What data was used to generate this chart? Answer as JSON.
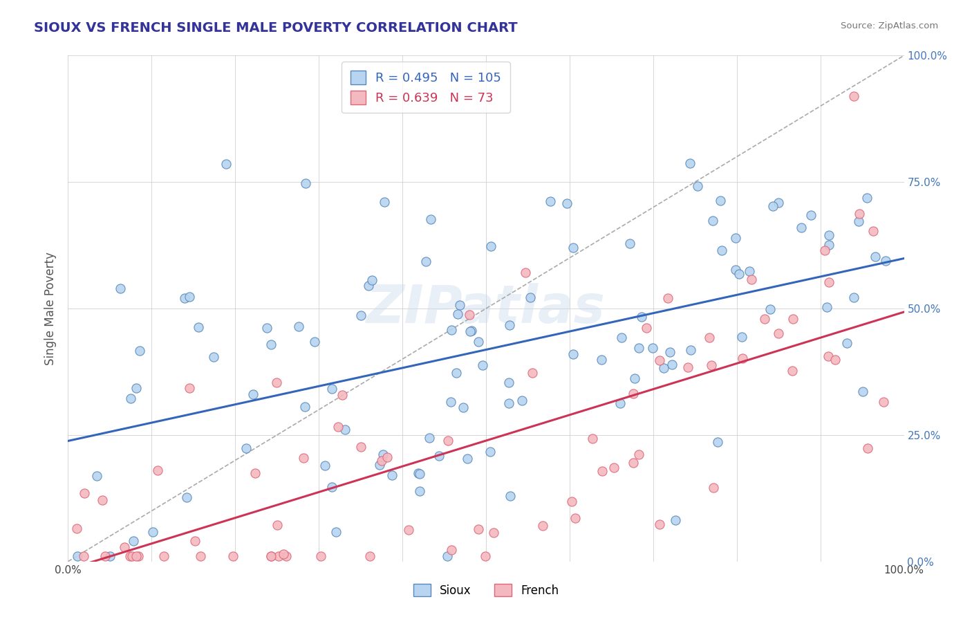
{
  "title": "SIOUX VS FRENCH SINGLE MALE POVERTY CORRELATION CHART",
  "source": "Source: ZipAtlas.com",
  "ylabel": "Single Male Poverty",
  "sioux_R": 0.495,
  "sioux_N": 105,
  "french_R": 0.639,
  "french_N": 73,
  "sioux_color": "#b8d4f0",
  "sioux_edge": "#5588bb",
  "french_color": "#f4b8c0",
  "french_edge": "#dd6677",
  "sioux_line_color": "#3366bb",
  "french_line_color": "#cc3355",
  "watermark": "ZIPatlas",
  "background_color": "#ffffff",
  "grid_color": "#cccccc",
  "title_color": "#333399",
  "right_tick_color": "#4477bb"
}
